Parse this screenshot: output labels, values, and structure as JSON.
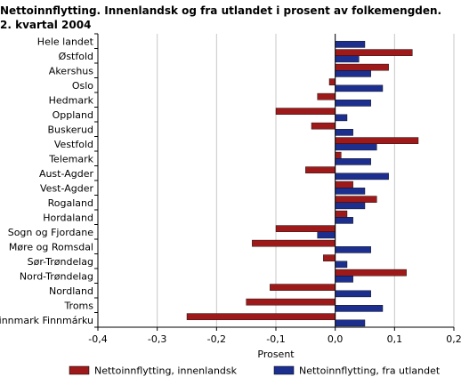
{
  "chart_data": {
    "type": "bar",
    "orientation": "horizontal",
    "title_line1": "Nettoinnflytting. Innenlandsk og fra utlandet i prosent av folkemengden.",
    "title_line2": "2. kvartal 2004",
    "xlabel": "Prosent",
    "xlim": [
      -0.4,
      0.2
    ],
    "xticks": [
      -0.4,
      -0.3,
      -0.2,
      -0.1,
      0.0,
      0.1,
      0.2
    ],
    "xtick_labels": [
      "-0,4",
      "-0,3",
      "-0,2",
      "-0,1",
      "0,0",
      "0,1",
      "0,2"
    ],
    "grid": true,
    "legend_position": "bottom",
    "categories": [
      "Hele landet",
      "Østfold",
      "Akershus",
      "Oslo",
      "Hedmark",
      "Oppland",
      "Buskerud",
      "Vestfold",
      "Telemark",
      "Aust-Agder",
      "Vest-Agder",
      "Rogaland",
      "Hordaland",
      "Sogn og Fjordane",
      "Møre og Romsdal",
      "Sør-Trøndelag",
      "Nord-Trøndelag",
      "Nordland",
      "Troms",
      "Finnmark Finnmárku"
    ],
    "series": [
      {
        "name": "Nettoinnflytting, innenlandsk",
        "color": "#9e1a1a",
        "values": [
          0.0,
          0.13,
          0.09,
          -0.01,
          -0.03,
          -0.1,
          -0.04,
          0.14,
          0.01,
          -0.05,
          0.03,
          0.07,
          0.02,
          -0.1,
          -0.14,
          -0.02,
          0.12,
          -0.11,
          -0.15,
          -0.25
        ]
      },
      {
        "name": "Nettoinnflytting, fra utlandet",
        "color": "#1c2f8f",
        "values": [
          0.05,
          0.04,
          0.06,
          0.08,
          0.06,
          0.02,
          0.03,
          0.07,
          0.06,
          0.09,
          0.05,
          0.05,
          0.03,
          -0.03,
          0.06,
          0.02,
          0.03,
          0.06,
          0.08,
          0.05
        ]
      }
    ]
  }
}
